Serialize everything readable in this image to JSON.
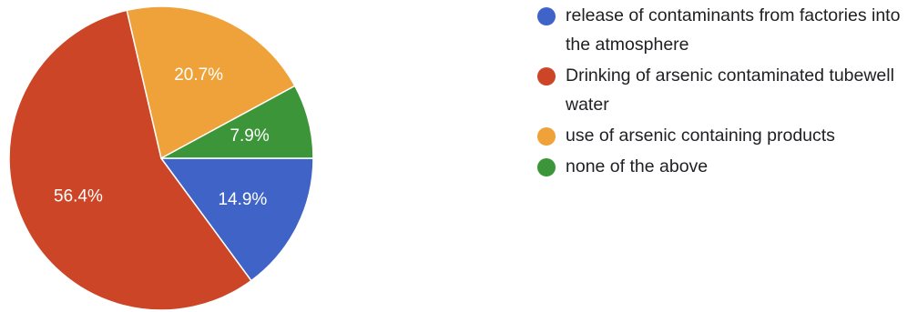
{
  "chart_data": {
    "type": "pie",
    "slices": [
      {
        "label": "release of contaminants from factories into the atmosphere",
        "value": 14.9,
        "display": "14.9%",
        "color": "#3f63c7"
      },
      {
        "label": "Drinking of arsenic contaminated tubewell water",
        "value": 56.4,
        "display": "56.4%",
        "color": "#cc4527"
      },
      {
        "label": "use of arsenic containing products",
        "value": 20.7,
        "display": "20.7%",
        "color": "#f0a23a"
      },
      {
        "label": "none of the above",
        "value": 7.9,
        "display": "7.9%",
        "color": "#3c9639"
      }
    ],
    "start_angle_deg": 90,
    "direction": "clockwise",
    "legend_position": "right"
  }
}
